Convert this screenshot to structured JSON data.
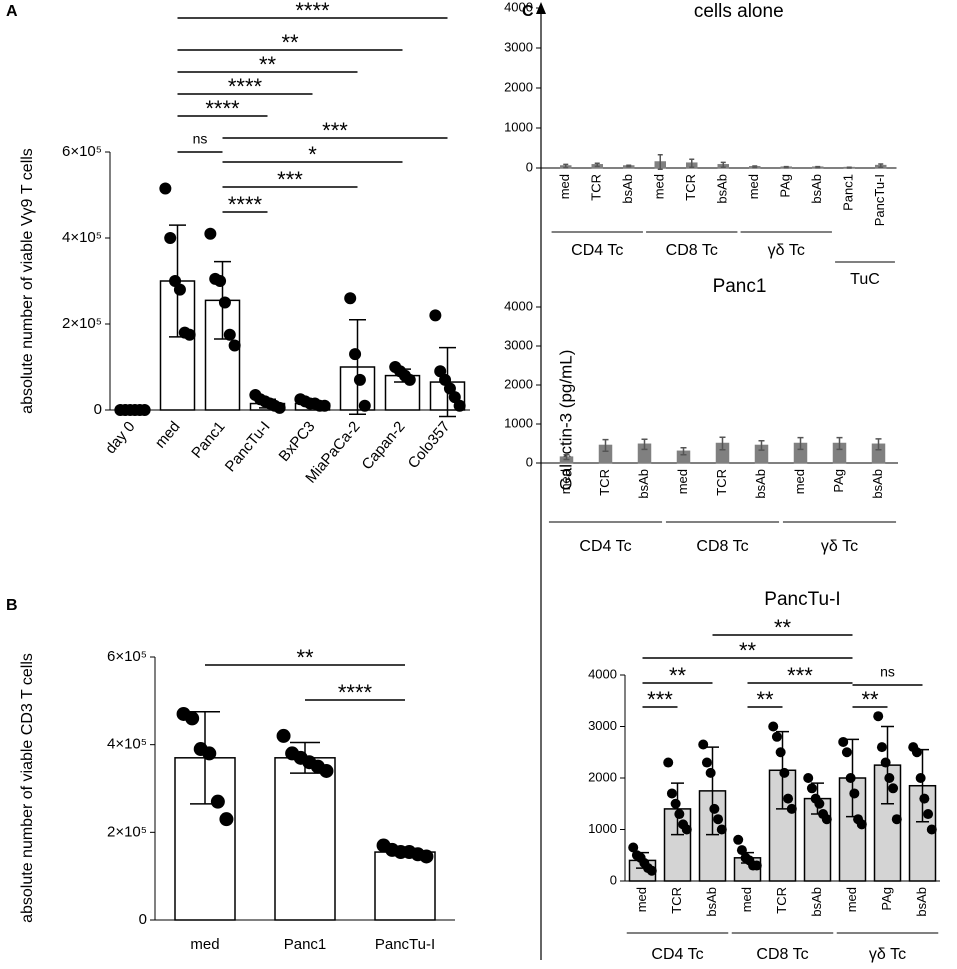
{
  "panel_labels": [
    "A",
    "B",
    "C"
  ],
  "shared_ylabel": "Galectin-3 (pg/mL)",
  "chart_data": [
    {
      "type": "bar",
      "ylabel": "absolute number of viable Vγ9 T cells",
      "color": "#ffffff",
      "categories": [
        "day 0",
        "med",
        "Panc1",
        "PancTu-I",
        "BxPC3",
        "MiaPaCa-2",
        "Capan-2",
        "Colo357"
      ],
      "values": [
        3000,
        300000,
        255000,
        15000,
        15000,
        100000,
        80000,
        65000
      ],
      "errors": [
        2000,
        130000,
        90000,
        10000,
        5000,
        110000,
        15000,
        80000
      ],
      "points": [
        [
          0,
          0,
          0,
          0,
          0,
          0
        ],
        [
          515000,
          400000,
          300000,
          280000,
          180000,
          175000
        ],
        [
          410000,
          305000,
          300000,
          250000,
          175000,
          150000
        ],
        [
          35000,
          25000,
          20000,
          15000,
          10000,
          5000
        ],
        [
          25000,
          20000,
          15000,
          15000,
          10000,
          10000
        ],
        [
          260000,
          130000,
          70000,
          10000
        ],
        [
          100000,
          90000,
          80000,
          70000
        ],
        [
          220000,
          90000,
          70000,
          50000,
          30000,
          10000
        ]
      ],
      "ylim": [
        0,
        600000
      ],
      "yticks": [
        0,
        {
          "value": 200000,
          "label": "2×10⁵"
        },
        {
          "value": 400000,
          "label": "4×10⁵"
        },
        {
          "value": 600000,
          "label": "6×10⁵"
        }
      ],
      "annotations": [
        "****",
        "**",
        "**",
        "****",
        "****",
        "ns",
        "***",
        "*",
        "***",
        "****"
      ]
    },
    {
      "type": "bar",
      "ylabel": "absolute number of viable CD3 T cells",
      "color": "#ffffff",
      "categories": [
        "med",
        "Panc1",
        "PancTu-I"
      ],
      "values": [
        370000,
        370000,
        155000
      ],
      "errors": [
        105000,
        35000,
        8000
      ],
      "points": [
        [
          470000,
          460000,
          390000,
          380000,
          270000,
          230000
        ],
        [
          420000,
          380000,
          370000,
          360000,
          350000,
          340000
        ],
        [
          170000,
          160000,
          155000,
          155000,
          150000,
          145000
        ]
      ],
      "ylim": [
        0,
        600000
      ],
      "yticks": [
        0,
        {
          "value": 200000,
          "label": "2×10⁵"
        },
        {
          "value": 400000,
          "label": "4×10⁵"
        },
        {
          "value": 600000,
          "label": "6×10⁵"
        }
      ],
      "annotations": [
        "**",
        "****"
      ]
    },
    {
      "type": "bar",
      "title": "cells alone",
      "color": "#808080",
      "categories": [
        "med",
        "TCR",
        "bsAb",
        "med",
        "TCR",
        "bsAb",
        "med",
        "PAg",
        "bsAb",
        "Panc1",
        "PancTu-I"
      ],
      "values": [
        50,
        80,
        50,
        150,
        120,
        80,
        30,
        20,
        20,
        10,
        60
      ],
      "errors": [
        40,
        40,
        20,
        180,
        100,
        60,
        20,
        15,
        15,
        10,
        40
      ],
      "groups": [
        "CD4 Tc",
        "CD8 Tc",
        "γδ Tc",
        "TuC"
      ],
      "ylim": [
        0,
        4000
      ],
      "yticks": [
        0,
        1000,
        2000,
        3000,
        4000
      ]
    },
    {
      "type": "bar",
      "title": "Panc1",
      "color": "#808080",
      "categories": [
        "med",
        "TCR",
        "bsAb",
        "med",
        "TCR",
        "bsAb",
        "med",
        "PAg",
        "bsAb"
      ],
      "values": [
        150,
        450,
        480,
        300,
        500,
        450,
        500,
        500,
        480
      ],
      "errors": [
        60,
        150,
        130,
        90,
        160,
        120,
        150,
        150,
        140
      ],
      "groups": [
        "CD4 Tc",
        "CD8 Tc",
        "γδ Tc"
      ],
      "ylim": [
        0,
        4000
      ],
      "yticks": [
        0,
        1000,
        2000,
        3000,
        4000
      ]
    },
    {
      "type": "bar",
      "title": "PancTu-I",
      "color": "#d4d4d4",
      "categories": [
        "med",
        "TCR",
        "bsAb",
        "med",
        "TCR",
        "bsAb",
        "med",
        "PAg",
        "bsAb"
      ],
      "values": [
        400,
        1400,
        1750,
        450,
        2150,
        1600,
        2000,
        2250,
        1850
      ],
      "errors": [
        150,
        500,
        850,
        100,
        750,
        300,
        750,
        750,
        700
      ],
      "points": [
        [
          650,
          500,
          450,
          350,
          250,
          200
        ],
        [
          2300,
          1700,
          1500,
          1300,
          1100,
          1000
        ],
        [
          2650,
          2300,
          2100,
          1400,
          1200,
          1000
        ],
        [
          800,
          600,
          450,
          400,
          300,
          300
        ],
        [
          3000,
          2800,
          2500,
          2100,
          1600,
          1400
        ],
        [
          2000,
          1800,
          1600,
          1500,
          1300,
          1200
        ],
        [
          2700,
          2500,
          2000,
          1700,
          1200,
          1100
        ],
        [
          3200,
          2600,
          2300,
          2000,
          1800,
          1200
        ],
        [
          2600,
          2500,
          2000,
          1600,
          1300,
          1000
        ]
      ],
      "groups": [
        "CD4 Tc",
        "CD8 Tc",
        "γδ Tc"
      ],
      "ylim": [
        0,
        4000
      ],
      "yticks": [
        0,
        1000,
        2000,
        3000,
        4000
      ],
      "annotations": [
        "**",
        "**",
        "**",
        "***",
        "ns",
        "***",
        "**",
        "**"
      ]
    }
  ]
}
